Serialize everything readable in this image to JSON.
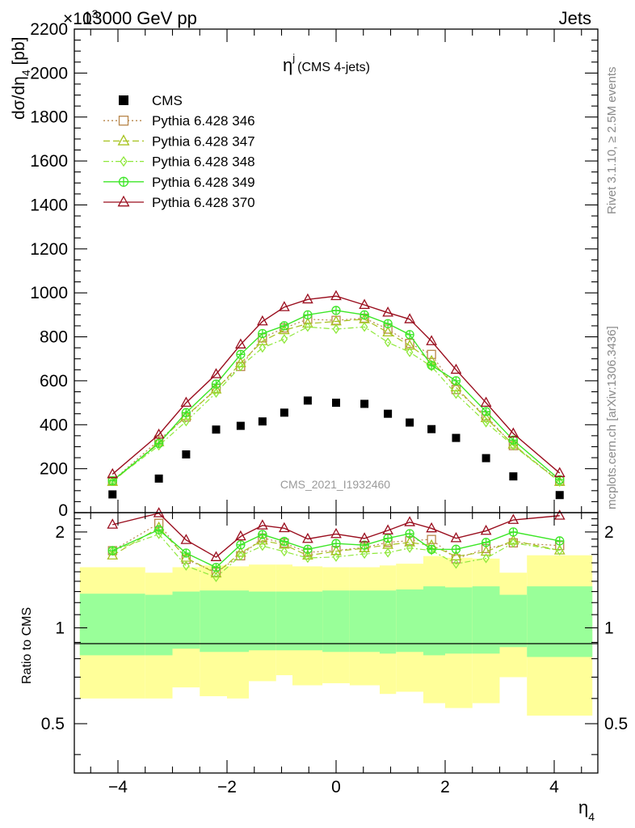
{
  "header": {
    "exponent_label": "×10",
    "exponent_power": "3",
    "energy_label": "13000 GeV pp",
    "category_label": "Jets"
  },
  "side_labels": {
    "rivet": "Rivet 3.1.10, ≥ 2.5M events",
    "mcplots": "mcplots.cern.ch [arXiv:1306.3436]"
  },
  "plot_title": {
    "main": "η",
    "superscript": "j",
    "sub": "(CMS 4-jets)"
  },
  "watermark": "CMS_2021_I1932460",
  "axes": {
    "main_ylabel_prefix": "dσ/dη",
    "main_ylabel_subscript": "4",
    "main_ylabel_suffix": " [pb]",
    "ratio_ylabel": "Ratio to CMS",
    "xlabel_main": "η",
    "xlabel_subscript": "4"
  },
  "colors": {
    "cms": "#000000",
    "p346": "#b8864a",
    "p347": "#a6c21e",
    "p348": "#8ee83a",
    "p349": "#3ce626",
    "p370": "#9a0e1e",
    "band_outer": "#ffff99",
    "band_inner": "#99ff99"
  },
  "chart_data": {
    "type": "scatter",
    "x_range": [
      -4.8,
      4.8
    ],
    "main_ylim": [
      0,
      2200
    ],
    "main_yticks": [
      0,
      200,
      400,
      600,
      800,
      1000,
      1200,
      1400,
      1600,
      1800,
      2000,
      2200
    ],
    "ratio_ylim": [
      0.35,
      2.3
    ],
    "ratio_ticks": [
      0.5,
      1,
      2
    ],
    "xticks": [
      -4,
      -2,
      0,
      2,
      4
    ],
    "x": [
      -4.1,
      -3.25,
      -2.75,
      -2.2,
      -1.75,
      -1.35,
      -0.95,
      -0.52,
      0,
      0.52,
      0.95,
      1.35,
      1.75,
      2.2,
      2.75,
      3.25,
      4.1
    ],
    "bin_edges": [
      -4.7,
      -3.5,
      -3.0,
      -2.5,
      -2.0,
      -1.6,
      -1.1,
      -0.8,
      -0.25,
      0.25,
      0.8,
      1.1,
      1.6,
      2.0,
      2.5,
      3.0,
      3.5,
      4.7
    ],
    "cms": [
      83,
      155,
      265,
      378,
      395,
      415,
      455,
      510,
      500,
      495,
      450,
      410,
      380,
      340,
      248,
      165,
      80
    ],
    "series": [
      {
        "name": "Pythia 6.428 346",
        "key": "p346",
        "marker": "square-open",
        "dash": "2,3",
        "values": [
          145,
          330,
          435,
          565,
          665,
          795,
          840,
          880,
          875,
          885,
          835,
          770,
          720,
          560,
          440,
          305,
          145
        ]
      },
      {
        "name": "Pythia 6.428 347",
        "key": "p347",
        "marker": "triangle-open",
        "dash": "8,4",
        "values": [
          140,
          320,
          440,
          560,
          680,
          780,
          830,
          860,
          870,
          880,
          820,
          760,
          690,
          570,
          430,
          310,
          140
        ]
      },
      {
        "name": "Pythia 6.428 348",
        "key": "p348",
        "marker": "diamond-open",
        "dash": "7,3,2,3",
        "values": [
          145,
          305,
          415,
          545,
          665,
          750,
          790,
          845,
          835,
          845,
          775,
          730,
          665,
          540,
          410,
          305,
          140
        ]
      },
      {
        "name": "Pythia 6.428 349",
        "key": "p349",
        "marker": "cross-circle",
        "dash": "",
        "values": [
          145,
          315,
          455,
          585,
          720,
          815,
          850,
          900,
          920,
          900,
          860,
          810,
          670,
          600,
          460,
          330,
          150
        ]
      },
      {
        "name": "Pythia 6.428 370",
        "key": "p370",
        "marker": "triangle-open",
        "dash": "",
        "values": [
          175,
          355,
          500,
          630,
          765,
          870,
          935,
          970,
          985,
          945,
          910,
          880,
          780,
          650,
          500,
          360,
          180
        ]
      }
    ],
    "band_outer": [
      [
        0.6,
        1.55
      ],
      [
        0.6,
        1.49
      ],
      [
        0.65,
        1.55
      ],
      [
        0.61,
        1.57
      ],
      [
        0.6,
        1.56
      ],
      [
        0.68,
        1.58
      ],
      [
        0.71,
        1.58
      ],
      [
        0.66,
        1.56
      ],
      [
        0.67,
        1.55
      ],
      [
        0.66,
        1.55
      ],
      [
        0.62,
        1.57
      ],
      [
        0.63,
        1.59
      ],
      [
        0.58,
        1.68
      ],
      [
        0.56,
        1.66
      ],
      [
        0.58,
        1.65
      ],
      [
        0.7,
        1.49
      ],
      [
        0.53,
        1.69
      ]
    ],
    "band_inner": [
      [
        0.82,
        1.28
      ],
      [
        0.82,
        1.27
      ],
      [
        0.86,
        1.3
      ],
      [
        0.84,
        1.31
      ],
      [
        0.84,
        1.31
      ],
      [
        0.85,
        1.3
      ],
      [
        0.85,
        1.3
      ],
      [
        0.85,
        1.3
      ],
      [
        0.84,
        1.31
      ],
      [
        0.84,
        1.31
      ],
      [
        0.83,
        1.31
      ],
      [
        0.84,
        1.32
      ],
      [
        0.82,
        1.35
      ],
      [
        0.83,
        1.34
      ],
      [
        0.83,
        1.35
      ],
      [
        0.87,
        1.27
      ],
      [
        0.81,
        1.35
      ]
    ]
  }
}
